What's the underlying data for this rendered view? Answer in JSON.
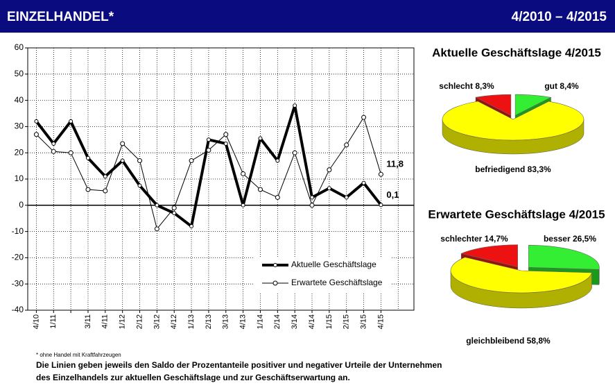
{
  "header": {
    "title": "EINZELHANDEL*",
    "period": "4/2010 – 4/2015"
  },
  "footnote": "* ohne Handel mit Kraftfahrzeugen",
  "note_lines": [
    "Die Linien geben jeweils den Saldo der Prozentanteile positiver und negativer Urteile der Unternehmen",
    "des Einzelhandels zur aktuellen Geschäftslage und zur Geschäftserwartung an."
  ],
  "chart_data": [
    {
      "type": "line",
      "categories": [
        "4/10",
        "1/11",
        null,
        "3/11",
        "4/11",
        "1/12",
        "2/12",
        "3/12",
        "4/12",
        "1/13",
        "2/13",
        "3/13",
        "4/13",
        "1/14",
        "2/14",
        "3/14",
        "4/14",
        "1/15",
        "2/15",
        "3/15",
        "4/15"
      ],
      "series": [
        {
          "name": "Aktuelle Geschäftslage",
          "color": "#000000",
          "values": [
            32,
            23.5,
            32,
            18,
            11,
            17,
            7.5,
            0,
            -3,
            -8,
            25,
            23.5,
            0,
            25.5,
            17,
            38,
            3,
            6.5,
            3,
            8.5,
            0.1
          ],
          "value_labels": [
            null,
            null,
            null,
            null,
            null,
            null,
            null,
            null,
            null,
            null,
            null,
            null,
            null,
            null,
            null,
            null,
            null,
            null,
            null,
            null,
            "0,1"
          ]
        },
        {
          "name": "Erwartete Geschäftslage",
          "color": "#000000",
          "values": [
            27,
            20.5,
            20,
            6,
            5.5,
            23.5,
            17,
            -9,
            -1,
            17,
            21,
            27,
            12,
            6,
            3,
            20,
            0,
            13.5,
            23,
            33.5,
            11.8
          ],
          "value_labels": [
            null,
            null,
            null,
            null,
            null,
            null,
            null,
            null,
            null,
            null,
            null,
            null,
            null,
            null,
            null,
            null,
            null,
            null,
            null,
            null,
            "11,8"
          ]
        }
      ],
      "ylim": [
        -40,
        60
      ],
      "yticks": [
        -40,
        -30,
        -20,
        -10,
        0,
        10,
        20,
        30,
        40,
        50,
        60
      ],
      "grid": true
    },
    {
      "type": "pie",
      "title": "Aktuelle Geschäftslage 4/2015",
      "categories": [
        "gut",
        "befriedigend",
        "schlecht"
      ],
      "values": [
        8.4,
        83.3,
        8.3
      ],
      "value_labels": [
        "8,4%",
        "83,3%",
        "8,3%"
      ],
      "colors": [
        "#33ee33",
        "#ffff00",
        "#ee1111"
      ]
    },
    {
      "type": "pie",
      "title": "Erwartete Geschäftslage 4/2015",
      "categories": [
        "besser",
        "gleichbleibend",
        "schlechter"
      ],
      "values": [
        26.5,
        58.8,
        14.7
      ],
      "value_labels": [
        "26,5%",
        "58,8%",
        "14,7%"
      ],
      "colors": [
        "#33ee33",
        "#ffff00",
        "#ee1111"
      ]
    }
  ]
}
